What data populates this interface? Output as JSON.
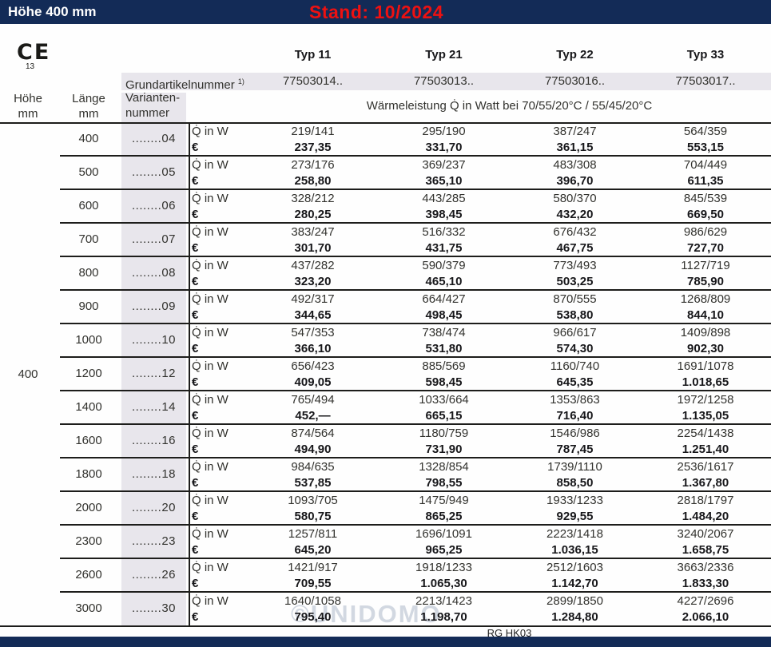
{
  "topbar": {
    "title": "Höhe 400 mm",
    "stand": "Stand: 10/2024"
  },
  "ce": {
    "mark": "CE",
    "number": "13"
  },
  "columns": {
    "hoehe_label": "Höhe",
    "hoehe_unit": "mm",
    "laenge_label": "Länge",
    "laenge_unit": "mm",
    "variant_label_line1": "Varianten-",
    "variant_label_line2": "nummer",
    "grundartikel_label": "Grundartikelnummer",
    "grundartikel_sup": "1)",
    "leistung_header": "Wärmeleistung Q̇ in Watt bei 70/55/20°C / 55/45/20°C"
  },
  "types": [
    {
      "label": "Typ 11",
      "grundartikelnummer": "77503014.."
    },
    {
      "label": "Typ 21",
      "grundartikelnummer": "77503013.."
    },
    {
      "label": "Typ 22",
      "grundartikelnummer": "77503016.."
    },
    {
      "label": "Typ 33",
      "grundartikelnummer": "77503017.."
    }
  ],
  "hoehe_value": "400",
  "row_labels": {
    "q": "Q̇ in W",
    "eur": "€"
  },
  "rows": [
    {
      "length": "400",
      "variant": "........04",
      "q": [
        "219/141",
        "295/190",
        "387/247",
        "564/359"
      ],
      "prices": [
        "237,35",
        "331,70",
        "361,15",
        "553,15"
      ]
    },
    {
      "length": "500",
      "variant": "........05",
      "q": [
        "273/176",
        "369/237",
        "483/308",
        "704/449"
      ],
      "prices": [
        "258,80",
        "365,10",
        "396,70",
        "611,35"
      ]
    },
    {
      "length": "600",
      "variant": "........06",
      "q": [
        "328/212",
        "443/285",
        "580/370",
        "845/539"
      ],
      "prices": [
        "280,25",
        "398,45",
        "432,20",
        "669,50"
      ]
    },
    {
      "length": "700",
      "variant": "........07",
      "q": [
        "383/247",
        "516/332",
        "676/432",
        "986/629"
      ],
      "prices": [
        "301,70",
        "431,75",
        "467,75",
        "727,70"
      ]
    },
    {
      "length": "800",
      "variant": "........08",
      "q": [
        "437/282",
        "590/379",
        "773/493",
        "1127/719"
      ],
      "prices": [
        "323,20",
        "465,10",
        "503,25",
        "785,90"
      ]
    },
    {
      "length": "900",
      "variant": "........09",
      "q": [
        "492/317",
        "664/427",
        "870/555",
        "1268/809"
      ],
      "prices": [
        "344,65",
        "498,45",
        "538,80",
        "844,10"
      ]
    },
    {
      "length": "1000",
      "variant": "........10",
      "q": [
        "547/353",
        "738/474",
        "966/617",
        "1409/898"
      ],
      "prices": [
        "366,10",
        "531,80",
        "574,30",
        "902,30"
      ]
    },
    {
      "length": "1200",
      "variant": "........12",
      "q": [
        "656/423",
        "885/569",
        "1160/740",
        "1691/1078"
      ],
      "prices": [
        "409,05",
        "598,45",
        "645,35",
        "1.018,65"
      ]
    },
    {
      "length": "1400",
      "variant": "........14",
      "q": [
        "765/494",
        "1033/664",
        "1353/863",
        "1972/1258"
      ],
      "prices": [
        "452,—",
        "665,15",
        "716,40",
        "1.135,05"
      ]
    },
    {
      "length": "1600",
      "variant": "........16",
      "q": [
        "874/564",
        "1180/759",
        "1546/986",
        "2254/1438"
      ],
      "prices": [
        "494,90",
        "731,90",
        "787,45",
        "1.251,40"
      ]
    },
    {
      "length": "1800",
      "variant": "........18",
      "q": [
        "984/635",
        "1328/854",
        "1739/1110",
        "2536/1617"
      ],
      "prices": [
        "537,85",
        "798,55",
        "858,50",
        "1.367,80"
      ]
    },
    {
      "length": "2000",
      "variant": "........20",
      "q": [
        "1093/705",
        "1475/949",
        "1933/1233",
        "2818/1797"
      ],
      "prices": [
        "580,75",
        "865,25",
        "929,55",
        "1.484,20"
      ]
    },
    {
      "length": "2300",
      "variant": "........23",
      "q": [
        "1257/811",
        "1696/1091",
        "2223/1418",
        "3240/2067"
      ],
      "prices": [
        "645,20",
        "965,25",
        "1.036,15",
        "1.658,75"
      ]
    },
    {
      "length": "2600",
      "variant": "........26",
      "q": [
        "1421/917",
        "1918/1233",
        "2512/1603",
        "3663/2336"
      ],
      "prices": [
        "709,55",
        "1.065,30",
        "1.142,70",
        "1.833,30"
      ]
    },
    {
      "length": "3000",
      "variant": "........30",
      "q": [
        "1640/1058",
        "2213/1423",
        "2899/1850",
        "4227/2696"
      ],
      "prices": [
        "795,40",
        "1.198,70",
        "1.284,80",
        "2.066,10"
      ]
    }
  ],
  "footer": {
    "code": "RG HK03"
  },
  "watermark": "©UNIDOMO",
  "colors": {
    "navy": "#132b57",
    "red": "#ee1111",
    "band_gray": "#e8e6ec"
  }
}
